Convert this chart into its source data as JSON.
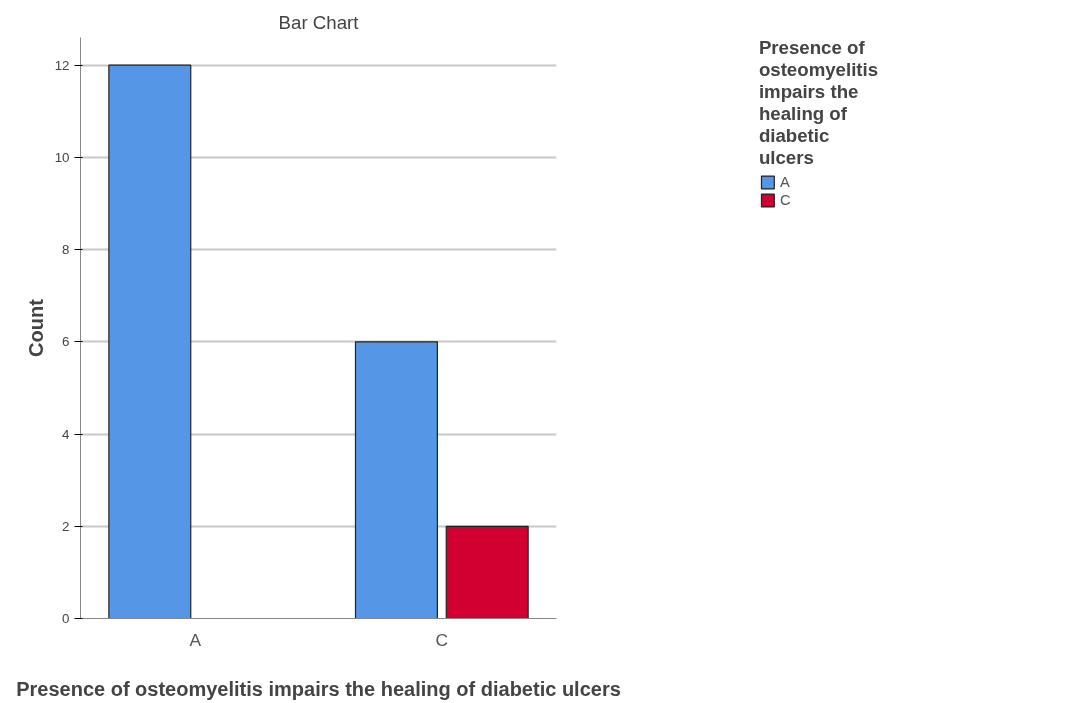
{
  "chart_data": {
    "type": "bar",
    "title": "Bar Chart",
    "xlabel": "Presence of osteomyelitis impairs the healing of diabetic ulcers",
    "ylabel": "Count",
    "legend_title": "Presence of osteomyelitis impairs the healing of diabetic ulcers",
    "categories": [
      "A",
      "C"
    ],
    "series": [
      {
        "name": "A",
        "color": "#5596e6",
        "values": [
          12,
          6
        ]
      },
      {
        "name": "C",
        "color": "#d10031",
        "values": [
          null,
          2
        ]
      }
    ],
    "ylim": [
      0,
      12.6
    ],
    "yticks": [
      0,
      2,
      4,
      6,
      8,
      10,
      12
    ],
    "grid": "y",
    "legend": "top right"
  }
}
